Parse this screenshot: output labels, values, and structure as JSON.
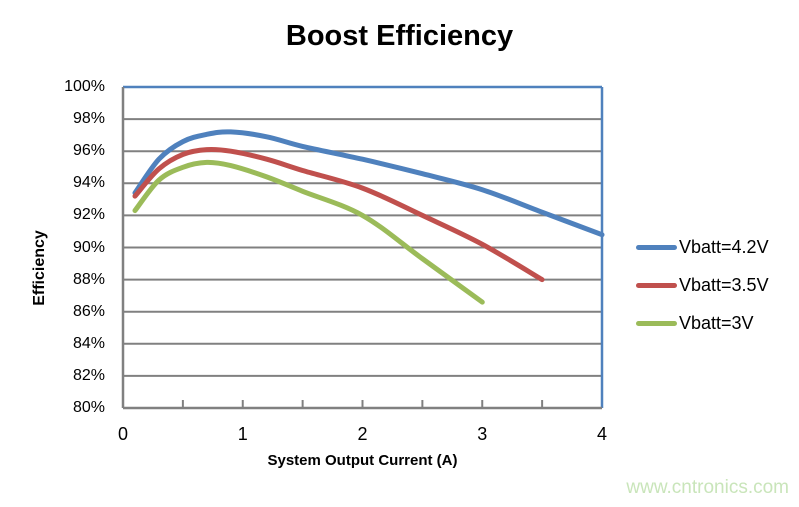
{
  "chart_data": {
    "type": "line",
    "title": "Boost Efficiency",
    "xlabel": "System Output Current (A)",
    "ylabel": "Efficiency",
    "xlim": [
      0,
      4
    ],
    "ylim": [
      80,
      100
    ],
    "x_tick_values": [
      0,
      1,
      2,
      3,
      4
    ],
    "x_tick_labels": [
      "0",
      "1",
      "2",
      "3",
      "4"
    ],
    "x_minor_tick_values": [
      0.5,
      1,
      1.5,
      2,
      2.5,
      3,
      3.5
    ],
    "y_tick_values": [
      100,
      98,
      96,
      94,
      92,
      90,
      88,
      86,
      84,
      82,
      80
    ],
    "y_tick_labels": [
      "100%",
      "98%",
      "96%",
      "94%",
      "92%",
      "90%",
      "88%",
      "86%",
      "84%",
      "82%",
      "80%"
    ],
    "grid": "horizontal-only",
    "legend_position": "right-middle",
    "series": [
      {
        "name": "Vbatt=4.2V",
        "color": "#4F81BD",
        "points": [
          [
            0.1,
            93.4
          ],
          [
            0.3,
            95.5
          ],
          [
            0.5,
            96.6
          ],
          [
            0.7,
            97.05
          ],
          [
            0.9,
            97.2
          ],
          [
            1.2,
            96.9
          ],
          [
            1.5,
            96.3
          ],
          [
            2.0,
            95.5
          ],
          [
            2.5,
            94.6
          ],
          [
            3.0,
            93.6
          ],
          [
            3.5,
            92.2
          ],
          [
            4.0,
            90.8
          ]
        ]
      },
      {
        "name": "Vbatt=3.5V",
        "color": "#C0504D",
        "points": [
          [
            0.1,
            93.2
          ],
          [
            0.3,
            94.9
          ],
          [
            0.5,
            95.8
          ],
          [
            0.7,
            96.1
          ],
          [
            0.9,
            96.0
          ],
          [
            1.2,
            95.5
          ],
          [
            1.5,
            94.8
          ],
          [
            2.0,
            93.7
          ],
          [
            2.5,
            92.0
          ],
          [
            3.0,
            90.2
          ],
          [
            3.5,
            88.0
          ]
        ]
      },
      {
        "name": "Vbatt=3V",
        "color": "#9BBB59",
        "points": [
          [
            0.1,
            92.3
          ],
          [
            0.3,
            94.2
          ],
          [
            0.5,
            95.0
          ],
          [
            0.7,
            95.3
          ],
          [
            0.9,
            95.1
          ],
          [
            1.2,
            94.4
          ],
          [
            1.5,
            93.5
          ],
          [
            2.0,
            92.0
          ],
          [
            2.5,
            89.3
          ],
          [
            3.0,
            86.6
          ]
        ]
      }
    ]
  },
  "watermark": {
    "text": "www.cntronics.com",
    "color": "#C9E5BA"
  },
  "styles": {
    "gridline_color": "#808080",
    "axis_color": "#808080",
    "plot_border_color": "#4F81BD",
    "series_line_width": 5
  }
}
